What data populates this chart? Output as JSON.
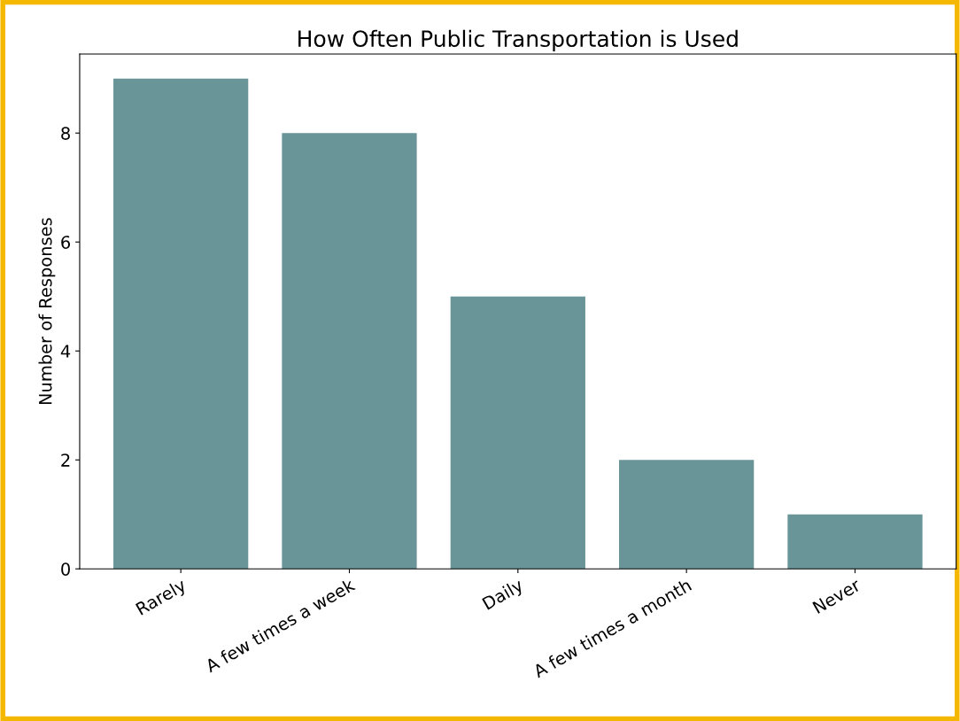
{
  "chart_data": {
    "type": "bar",
    "title": "How Often Public Transportation is Used",
    "ylabel": "Number of Responses",
    "categories": [
      "Rarely",
      "A few times a week",
      "Daily",
      "A few times a month",
      "Never"
    ],
    "values": [
      9,
      8,
      5,
      2,
      1
    ],
    "color": "#699599",
    "ylim": [
      0,
      9.45
    ],
    "yticks": [
      0,
      2,
      4,
      6,
      8
    ],
    "grid": false
  }
}
